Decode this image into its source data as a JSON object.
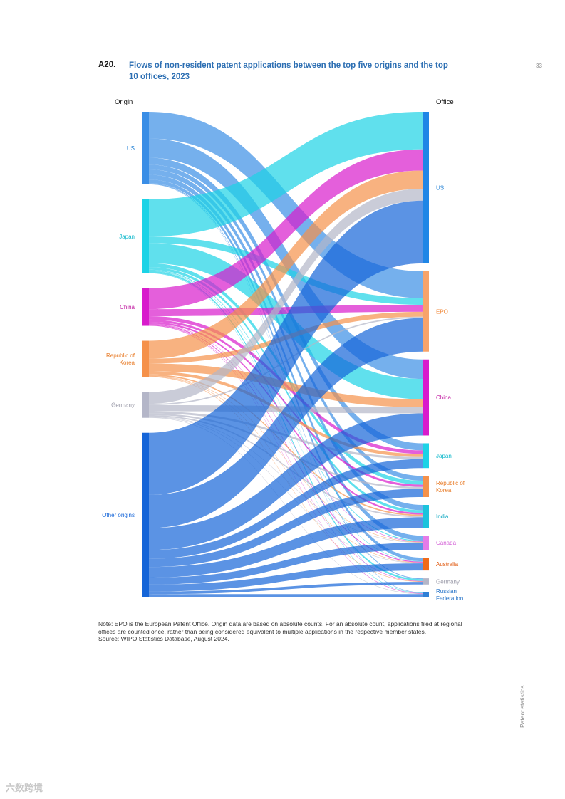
{
  "page": {
    "number": "33",
    "side_label": "Patent statistics",
    "watermark": "六数跨境"
  },
  "figure": {
    "label": "A20.",
    "title": "Flows of non-resident patent applications between the top five origins and the top 10 offices, 2023",
    "origin_heading": "Origin",
    "office_heading": "Office",
    "note": "Note: EPO is the European Patent Office. Origin data are based on absolute counts. For an absolute count, applications filed at regional offices are counted once, rather than being considered equivalent to multiple applications in the respective member states.",
    "source": "Source: WIPO Statistics Database, August 2024."
  },
  "chart_data": {
    "type": "sankey",
    "units": "share of total flows (%), estimated from band widths",
    "origins": [
      {
        "name": "US",
        "color": "#3a8ee6",
        "label_color": "#1f7fd4"
      },
      {
        "name": "Japan",
        "color": "#1cd3e6",
        "label_color": "#10b9cc"
      },
      {
        "name": "China",
        "color": "#d81bcc",
        "label_color": "#c0159f"
      },
      {
        "name": "Republic of Korea",
        "color": "#f5914a",
        "label_color": "#e87a25"
      },
      {
        "name": "Germany",
        "color": "#b4b6c8",
        "label_color": "#9a9aa8"
      },
      {
        "name": "Other origins",
        "color": "#1565d8",
        "label_color": "#1565d8"
      }
    ],
    "offices": [
      {
        "name": "US",
        "color": "#1f86e6",
        "label_color": "#1f7fd4"
      },
      {
        "name": "EPO",
        "color": "#f7a36a",
        "label_color": "#f08a3c"
      },
      {
        "name": "China",
        "color": "#d81bcc",
        "label_color": "#c0159f"
      },
      {
        "name": "Japan",
        "color": "#1cd3e6",
        "label_color": "#10b9cc"
      },
      {
        "name": "Republic of Korea",
        "color": "#f5914a",
        "label_color": "#e87a25"
      },
      {
        "name": "India",
        "color": "#1cc3dc",
        "label_color": "#10a9c2"
      },
      {
        "name": "Canada",
        "color": "#e57be8",
        "label_color": "#d35fd6"
      },
      {
        "name": "Australia",
        "color": "#f06a1a",
        "label_color": "#e05a10"
      },
      {
        "name": "Germany",
        "color": "#b4b6c8",
        "label_color": "#9a9aa8"
      },
      {
        "name": "Russian Federation",
        "color": "#2f7fd6",
        "label_color": "#1f6fc6"
      }
    ],
    "flows": [
      {
        "from": "US",
        "to": "EPO",
        "value": 6.1
      },
      {
        "from": "US",
        "to": "China",
        "value": 4.4
      },
      {
        "from": "US",
        "to": "Japan",
        "value": 1.6
      },
      {
        "from": "US",
        "to": "Republic of Korea",
        "value": 1.1
      },
      {
        "from": "US",
        "to": "India",
        "value": 1.2
      },
      {
        "from": "US",
        "to": "Canada",
        "value": 1.1
      },
      {
        "from": "US",
        "to": "Australia",
        "value": 0.8
      },
      {
        "from": "US",
        "to": "Germany",
        "value": 0.2
      },
      {
        "from": "US",
        "to": "Russian Federation",
        "value": 0.1
      },
      {
        "from": "Japan",
        "to": "US",
        "value": 8.5
      },
      {
        "from": "Japan",
        "to": "EPO",
        "value": 1.5
      },
      {
        "from": "Japan",
        "to": "China",
        "value": 4.6
      },
      {
        "from": "Japan",
        "to": "Republic of Korea",
        "value": 0.9
      },
      {
        "from": "Japan",
        "to": "India",
        "value": 0.6
      },
      {
        "from": "Japan",
        "to": "Canada",
        "value": 0.2
      },
      {
        "from": "Japan",
        "to": "Australia",
        "value": 0.1
      },
      {
        "from": "Japan",
        "to": "Germany",
        "value": 0.4
      },
      {
        "from": "Japan",
        "to": "Russian Federation",
        "value": 0.1
      },
      {
        "from": "China",
        "to": "US",
        "value": 4.8
      },
      {
        "from": "China",
        "to": "EPO",
        "value": 1.6
      },
      {
        "from": "China",
        "to": "Japan",
        "value": 0.8
      },
      {
        "from": "China",
        "to": "Republic of Korea",
        "value": 0.5
      },
      {
        "from": "China",
        "to": "India",
        "value": 0.4
      },
      {
        "from": "China",
        "to": "Canada",
        "value": 0.1
      },
      {
        "from": "China",
        "to": "Australia",
        "value": 0.2
      },
      {
        "from": "China",
        "to": "Germany",
        "value": 0.1
      },
      {
        "from": "China",
        "to": "Russian Federation",
        "value": 0.1
      },
      {
        "from": "Republic of Korea",
        "to": "US",
        "value": 4.1
      },
      {
        "from": "Republic of Korea",
        "to": "EPO",
        "value": 1.1
      },
      {
        "from": "Republic of Korea",
        "to": "China",
        "value": 1.8
      },
      {
        "from": "Republic of Korea",
        "to": "Japan",
        "value": 0.7
      },
      {
        "from": "Republic of Korea",
        "to": "India",
        "value": 0.3
      },
      {
        "from": "Republic of Korea",
        "to": "Canada",
        "value": 0.1
      },
      {
        "from": "Republic of Korea",
        "to": "Australia",
        "value": 0.1
      },
      {
        "from": "Republic of Korea",
        "to": "Germany",
        "value": 0.1
      },
      {
        "from": "Germany",
        "to": "US",
        "value": 2.7
      },
      {
        "from": "Germany",
        "to": "EPO",
        "value": 0.3
      },
      {
        "from": "Germany",
        "to": "China",
        "value": 1.4
      },
      {
        "from": "Germany",
        "to": "Japan",
        "value": 0.5
      },
      {
        "from": "Germany",
        "to": "Republic of Korea",
        "value": 0.4
      },
      {
        "from": "Germany",
        "to": "India",
        "value": 0.3
      },
      {
        "from": "Germany",
        "to": "Canada",
        "value": 0.1
      },
      {
        "from": "Germany",
        "to": "Australia",
        "value": 0.1
      },
      {
        "from": "Germany",
        "to": "Russian Federation",
        "value": 0.1
      },
      {
        "from": "Other origins",
        "to": "US",
        "value": 14.2
      },
      {
        "from": "Other origins",
        "to": "EPO",
        "value": 7.6
      },
      {
        "from": "Other origins",
        "to": "China",
        "value": 5.0
      },
      {
        "from": "Other origins",
        "to": "Japan",
        "value": 2.0
      },
      {
        "from": "Other origins",
        "to": "Republic of Korea",
        "value": 1.9
      },
      {
        "from": "Other origins",
        "to": "India",
        "value": 2.4
      },
      {
        "from": "Other origins",
        "to": "Canada",
        "value": 1.6
      },
      {
        "from": "Other origins",
        "to": "Australia",
        "value": 1.6
      },
      {
        "from": "Other origins",
        "to": "Germany",
        "value": 0.6
      },
      {
        "from": "Other origins",
        "to": "Russian Federation",
        "value": 0.6
      }
    ]
  }
}
